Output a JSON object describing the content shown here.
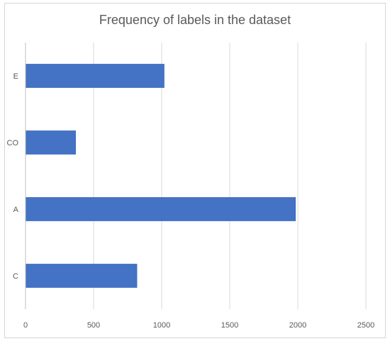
{
  "chart_data": {
    "type": "bar",
    "orientation": "horizontal",
    "title": "Frequency of labels in the dataset",
    "xlabel": "",
    "ylabel": "",
    "categories": [
      "E",
      "CO",
      "A",
      "C"
    ],
    "values": [
      1020,
      370,
      1985,
      820
    ],
    "xlim": [
      0,
      2500
    ],
    "xticks": [
      0,
      500,
      1000,
      1500,
      2000,
      2500
    ],
    "grid": "vertical",
    "legend": "none",
    "bar_color": "#4472c4",
    "grid_color": "#d9d9d9",
    "axis_color": "#bfbfbf"
  }
}
